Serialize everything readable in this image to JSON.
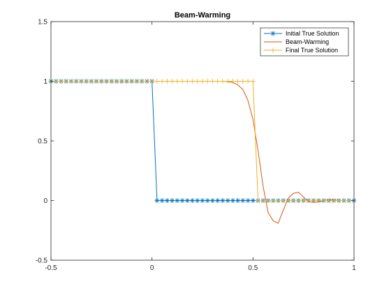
{
  "chart_data": {
    "type": "line",
    "title": "Beam-Warming",
    "xlabel": "",
    "ylabel": "",
    "xlim": [
      -0.5,
      1
    ],
    "ylim": [
      -0.5,
      1.5
    ],
    "xticks": [
      -0.5,
      0,
      0.5,
      1
    ],
    "yticks": [
      -0.5,
      0,
      0.5,
      1,
      1.5
    ],
    "xtick_labels": [
      "-0.5",
      "0",
      "0.5",
      "1"
    ],
    "ytick_labels": [
      "-0.5",
      "0",
      "0.5",
      "1",
      "1.5"
    ],
    "grid": false,
    "legend_position": "top-right",
    "series": [
      {
        "name": "Initial True Solution",
        "color": "#0072BD",
        "marker": "asterisk",
        "x": [
          -0.5,
          -0.475,
          -0.45,
          -0.425,
          -0.4,
          -0.375,
          -0.35,
          -0.325,
          -0.3,
          -0.275,
          -0.25,
          -0.225,
          -0.2,
          -0.175,
          -0.15,
          -0.125,
          -0.1,
          -0.075,
          -0.05,
          -0.025,
          0,
          0.025,
          0.05,
          0.075,
          0.1,
          0.125,
          0.15,
          0.175,
          0.2,
          0.225,
          0.25,
          0.275,
          0.3,
          0.325,
          0.35,
          0.375,
          0.4,
          0.425,
          0.45,
          0.475,
          0.5,
          0.525,
          0.55,
          0.575,
          0.6,
          0.625,
          0.65,
          0.675,
          0.7,
          0.725,
          0.75,
          0.775,
          0.8,
          0.825,
          0.85,
          0.875,
          0.9,
          0.925,
          0.95,
          0.975,
          1.0
        ],
        "y": [
          1,
          1,
          1,
          1,
          1,
          1,
          1,
          1,
          1,
          1,
          1,
          1,
          1,
          1,
          1,
          1,
          1,
          1,
          1,
          1,
          1,
          0,
          0,
          0,
          0,
          0,
          0,
          0,
          0,
          0,
          0,
          0,
          0,
          0,
          0,
          0,
          0,
          0,
          0,
          0,
          0,
          0,
          0,
          0,
          0,
          0,
          0,
          0,
          0,
          0,
          0,
          0,
          0,
          0,
          0,
          0,
          0,
          0,
          0,
          0,
          0
        ]
      },
      {
        "name": "Beam-Warming",
        "color": "#D95319",
        "marker": "none",
        "x": [
          -0.5,
          0.35,
          0.375,
          0.4,
          0.425,
          0.45,
          0.475,
          0.5,
          0.525,
          0.55,
          0.575,
          0.6,
          0.625,
          0.65,
          0.675,
          0.7,
          0.725,
          0.75,
          0.775,
          0.8,
          0.825,
          0.85,
          0.875,
          0.9,
          0.925,
          0.95,
          0.975,
          1.0
        ],
        "y": [
          1,
          1,
          0.998,
          0.99,
          0.97,
          0.93,
          0.84,
          0.68,
          0.42,
          0.12,
          -0.1,
          -0.17,
          -0.19,
          -0.08,
          0.02,
          0.06,
          0.07,
          0.03,
          -0.01,
          -0.015,
          -0.01,
          0.0,
          0.005,
          0.005,
          0.0,
          0.0,
          0.0,
          0.0
        ]
      },
      {
        "name": "Final True Solution",
        "color": "#EDB120",
        "marker": "plus",
        "x": [
          -0.5,
          -0.475,
          -0.45,
          -0.425,
          -0.4,
          -0.375,
          -0.35,
          -0.325,
          -0.3,
          -0.275,
          -0.25,
          -0.225,
          -0.2,
          -0.175,
          -0.15,
          -0.125,
          -0.1,
          -0.075,
          -0.05,
          -0.025,
          0,
          0.025,
          0.05,
          0.075,
          0.1,
          0.125,
          0.15,
          0.175,
          0.2,
          0.225,
          0.25,
          0.275,
          0.3,
          0.325,
          0.35,
          0.375,
          0.4,
          0.425,
          0.45,
          0.475,
          0.5,
          0.525,
          0.55,
          0.575,
          0.6,
          0.625,
          0.65,
          0.675,
          0.7,
          0.725,
          0.75,
          0.775,
          0.8,
          0.825,
          0.85,
          0.875,
          0.9,
          0.925,
          0.95,
          0.975,
          1.0
        ],
        "y": [
          1,
          1,
          1,
          1,
          1,
          1,
          1,
          1,
          1,
          1,
          1,
          1,
          1,
          1,
          1,
          1,
          1,
          1,
          1,
          1,
          1,
          1,
          1,
          1,
          1,
          1,
          1,
          1,
          1,
          1,
          1,
          1,
          1,
          1,
          1,
          1,
          1,
          1,
          1,
          1,
          1,
          0,
          0,
          0,
          0,
          0,
          0,
          0,
          0,
          0,
          0,
          0,
          0,
          0,
          0,
          0,
          0,
          0,
          0,
          0,
          0
        ]
      }
    ]
  }
}
